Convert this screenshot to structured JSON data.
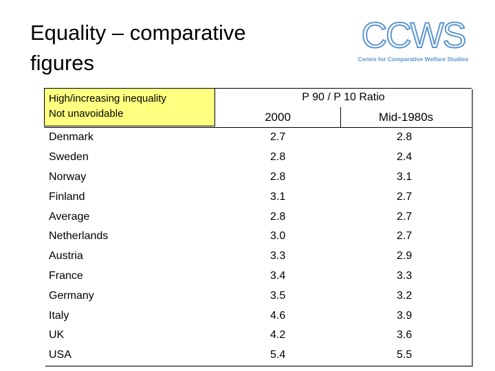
{
  "slide": {
    "title": "Equality – comparative figures"
  },
  "logo": {
    "mark": "CCWS",
    "subtitle": "Centre for Comparative Welfare Studies",
    "color": "#5b95cf"
  },
  "table": {
    "header_note_line1": "High/increasing inequality",
    "header_note_line2": "Not unavoidable",
    "group_header": "P 90 / P 10  Ratio",
    "columns": [
      "2000",
      "Mid-1980s"
    ],
    "highlight_color": "#ffff80",
    "rows": [
      {
        "country": "Denmark",
        "v2000": "2.7",
        "v1980": "2.8"
      },
      {
        "country": "Sweden",
        "v2000": "2.8",
        "v1980": "2.4"
      },
      {
        "country": "Norway",
        "v2000": "2.8",
        "v1980": "3.1"
      },
      {
        "country": "Finland",
        "v2000": "3.1",
        "v1980": "2.7"
      },
      {
        "country": "Average",
        "v2000": "2.8",
        "v1980": "2.7"
      },
      {
        "country": "Netherlands",
        "v2000": "3.0",
        "v1980": "2.7"
      },
      {
        "country": "Austria",
        "v2000": "3.3",
        "v1980": "2.9"
      },
      {
        "country": "France",
        "v2000": "3.4",
        "v1980": "3.3"
      },
      {
        "country": "Germany",
        "v2000": "3.5",
        "v1980": "3.2"
      },
      {
        "country": "Italy",
        "v2000": "4.6",
        "v1980": "3.9"
      },
      {
        "country": "UK",
        "v2000": "4.2",
        "v1980": "3.6"
      },
      {
        "country": "USA",
        "v2000": "5.4",
        "v1980": "5.5"
      }
    ]
  }
}
